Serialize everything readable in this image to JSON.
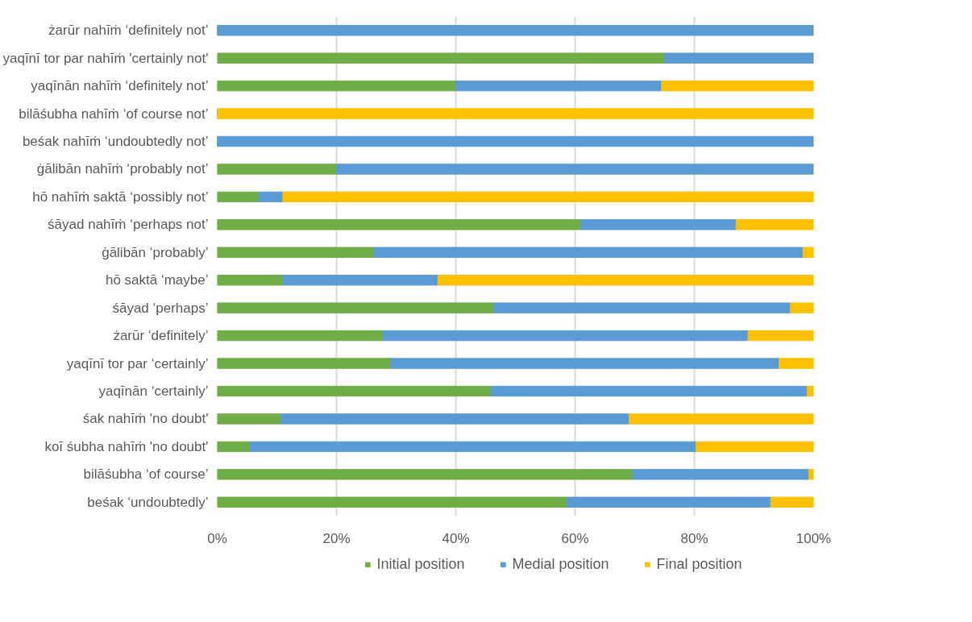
{
  "chart_data": {
    "type": "bar",
    "orientation": "horizontal",
    "stacked": true,
    "categories": [
      "żarūr nahīṁ ‘definitely not’",
      "yaqīnī tor par nahīṁ 'certainly not'",
      "yaqīnān nahīṁ ‘definitely not’",
      "bilāśubha nahīṁ ‘of course not’",
      "beśak nahīṁ ‘undoubtedly not’",
      "ġālibān nahīṁ ‘probably not’",
      "hō nahīṁ saktā ‘possibly not’",
      "śāyad nahīṁ ‘perhaps not’",
      "ġālibān ‘probably’",
      "hō saktā ‘maybe’",
      "śāyad ‘perhaps’",
      "żarūr ‘definitely’",
      "yaqīnī tor par ‘certainly’",
      "yaqīnān ‘certainly’",
      "śak nahīṁ 'no doubt'",
      "koī śubha nahīṁ 'no doubt'",
      "bilāśubha ‘of course’",
      "beśak ‘undoubtedly’"
    ],
    "series": [
      {
        "name": "Initial position",
        "color": "#70ad47",
        "values": [
          0,
          75,
          40,
          0,
          0,
          20,
          7,
          61,
          26.3,
          11,
          46.4,
          27.8,
          29.1,
          45.9,
          10.7,
          5.5,
          69.7,
          58.7
        ]
      },
      {
        "name": "Medial position",
        "color": "#5b9bd5",
        "values": [
          100,
          25,
          34.5,
          0,
          100,
          80,
          4,
          26,
          71.9,
          26,
          49.7,
          61.2,
          65.1,
          53,
          58.4,
          74.8,
          29.5,
          34.1
        ]
      },
      {
        "name": "Final position",
        "color": "#ffc000",
        "values": [
          0,
          0,
          25.5,
          100,
          0,
          0,
          89,
          13,
          1.8,
          63,
          3.9,
          11,
          5.8,
          1.1,
          30.9,
          19.7,
          0.8,
          7.2
        ]
      }
    ],
    "xlim": [
      0,
      100
    ],
    "xticks": [
      {
        "value": 0,
        "label": "0%"
      },
      {
        "value": 20,
        "label": "20%"
      },
      {
        "value": 40,
        "label": "40%"
      },
      {
        "value": 60,
        "label": "60%"
      },
      {
        "value": 80,
        "label": "80%"
      },
      {
        "value": 100,
        "label": "100%"
      }
    ],
    "grid": "x",
    "legend": "bottom"
  }
}
